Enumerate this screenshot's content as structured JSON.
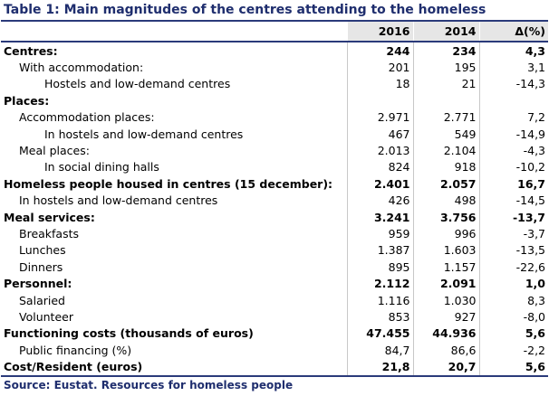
{
  "title": "Table 1: Main magnitudes of the centres attending to the homeless",
  "columns": [
    "2016",
    "2014",
    "Δ(%)"
  ],
  "rows": [
    {
      "label": "Centres:",
      "bold": true,
      "indent": 0,
      "v2016": "244",
      "v2014": "234",
      "delta": "4,3"
    },
    {
      "label": "With accommodation:",
      "bold": false,
      "indent": 1,
      "v2016": "201",
      "v2014": "195",
      "delta": "3,1"
    },
    {
      "label": "Hostels and low-demand centres",
      "bold": false,
      "indent": 2,
      "v2016": "18",
      "v2014": "21",
      "delta": "-14,3"
    },
    {
      "label": "Places:",
      "bold": true,
      "indent": 0,
      "v2016": "",
      "v2014": "",
      "delta": ""
    },
    {
      "label": "Accommodation places:",
      "bold": false,
      "indent": 1,
      "v2016": "2.971",
      "v2014": "2.771",
      "delta": "7,2"
    },
    {
      "label": "In hostels and low-demand centres",
      "bold": false,
      "indent": 2,
      "v2016": "467",
      "v2014": "549",
      "delta": "-14,9"
    },
    {
      "label": "Meal places:",
      "bold": false,
      "indent": 1,
      "v2016": "2.013",
      "v2014": "2.104",
      "delta": "-4,3"
    },
    {
      "label": "In social dining halls",
      "bold": false,
      "indent": 2,
      "v2016": "824",
      "v2014": "918",
      "delta": "-10,2"
    },
    {
      "label": "Homeless people housed in centres (15 december):",
      "bold": true,
      "indent": 0,
      "v2016": "2.401",
      "v2014": "2.057",
      "delta": "16,7"
    },
    {
      "label": "In hostels and low-demand centres",
      "bold": false,
      "indent": 1,
      "v2016": "426",
      "v2014": "498",
      "delta": "-14,5"
    },
    {
      "label": "Meal services:",
      "bold": true,
      "indent": 0,
      "v2016": "3.241",
      "v2014": "3.756",
      "delta": "-13,7"
    },
    {
      "label": "Breakfasts",
      "bold": false,
      "indent": 1,
      "v2016": "959",
      "v2014": "996",
      "delta": "-3,7"
    },
    {
      "label": "Lunches",
      "bold": false,
      "indent": 1,
      "v2016": "1.387",
      "v2014": "1.603",
      "delta": "-13,5"
    },
    {
      "label": "Dinners",
      "bold": false,
      "indent": 1,
      "v2016": "895",
      "v2014": "1.157",
      "delta": "-22,6"
    },
    {
      "label": " Personnel:",
      "bold": true,
      "indent": 0,
      "v2016": "2.112",
      "v2014": "2.091",
      "delta": "1,0"
    },
    {
      "label": "Salaried",
      "bold": false,
      "indent": 1,
      "v2016": "1.116",
      "v2014": "1.030",
      "delta": "8,3"
    },
    {
      "label": "Volunteer",
      "bold": false,
      "indent": 1,
      "v2016": "853",
      "v2014": "927",
      "delta": "-8,0"
    },
    {
      "label": "Functioning costs (thousands of euros)",
      "bold": true,
      "indent": 0,
      "v2016": "47.455",
      "v2014": "44.936",
      "delta": "5,6"
    },
    {
      "label": "Public financing (%)",
      "bold": false,
      "indent": 1,
      "v2016": "84,7",
      "v2014": "86,6",
      "delta": "-2,2"
    },
    {
      "label": "Cost/Resident (euros)",
      "bold": true,
      "indent": 0,
      "v2016": "21,8",
      "v2014": "20,7",
      "delta": "5,6"
    }
  ],
  "source": "Source: Eustat. Resources for homeless people",
  "colors": {
    "title": "#1f2e6e",
    "rule": "#2a3a7a",
    "header_bg": "#e6e6e6"
  }
}
